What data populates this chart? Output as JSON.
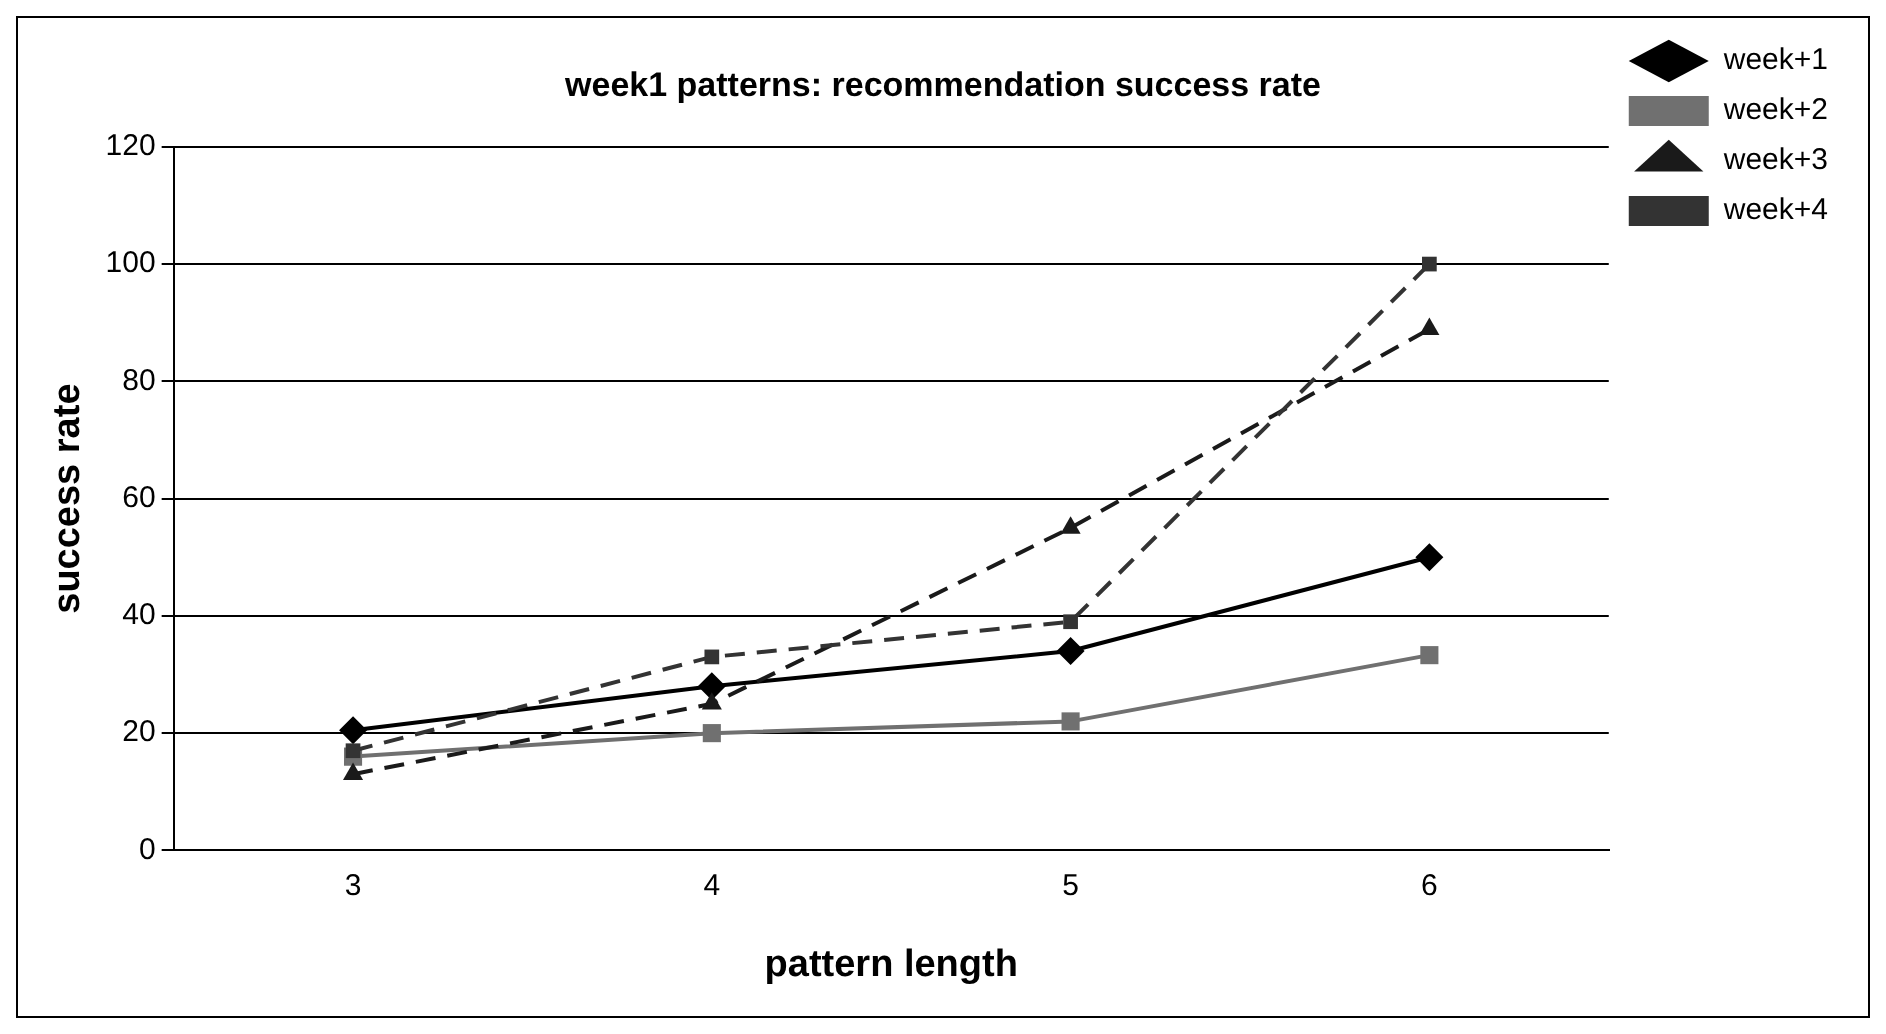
{
  "chart_data": {
    "type": "line",
    "title": "week1 patterns: recommendation success rate",
    "xlabel": "pattern length",
    "ylabel": "success rate",
    "categories": [
      "3",
      "4",
      "5",
      "6"
    ],
    "series": [
      {
        "name": "week+1",
        "color": "#000000",
        "marker": "diamond",
        "line_style": "solid",
        "values": [
          20.5,
          28,
          34,
          50
        ]
      },
      {
        "name": "week+2",
        "color": "#707070",
        "marker": "square",
        "line_style": "solid",
        "values": [
          16,
          20,
          22,
          33.3
        ]
      },
      {
        "name": "week+3",
        "color": "#1a1a1a",
        "marker": "triangle",
        "line_style": "dashed",
        "values": [
          13,
          25,
          55,
          88.9
        ]
      },
      {
        "name": "week+4",
        "color": "#333333",
        "marker": "square",
        "line_style": "dashed",
        "values": [
          17,
          33,
          39,
          100
        ]
      }
    ],
    "ylim": [
      0,
      120
    ],
    "yticks": [
      0,
      20,
      40,
      60,
      80,
      100,
      120
    ],
    "grid": "y",
    "legend": "top right"
  }
}
